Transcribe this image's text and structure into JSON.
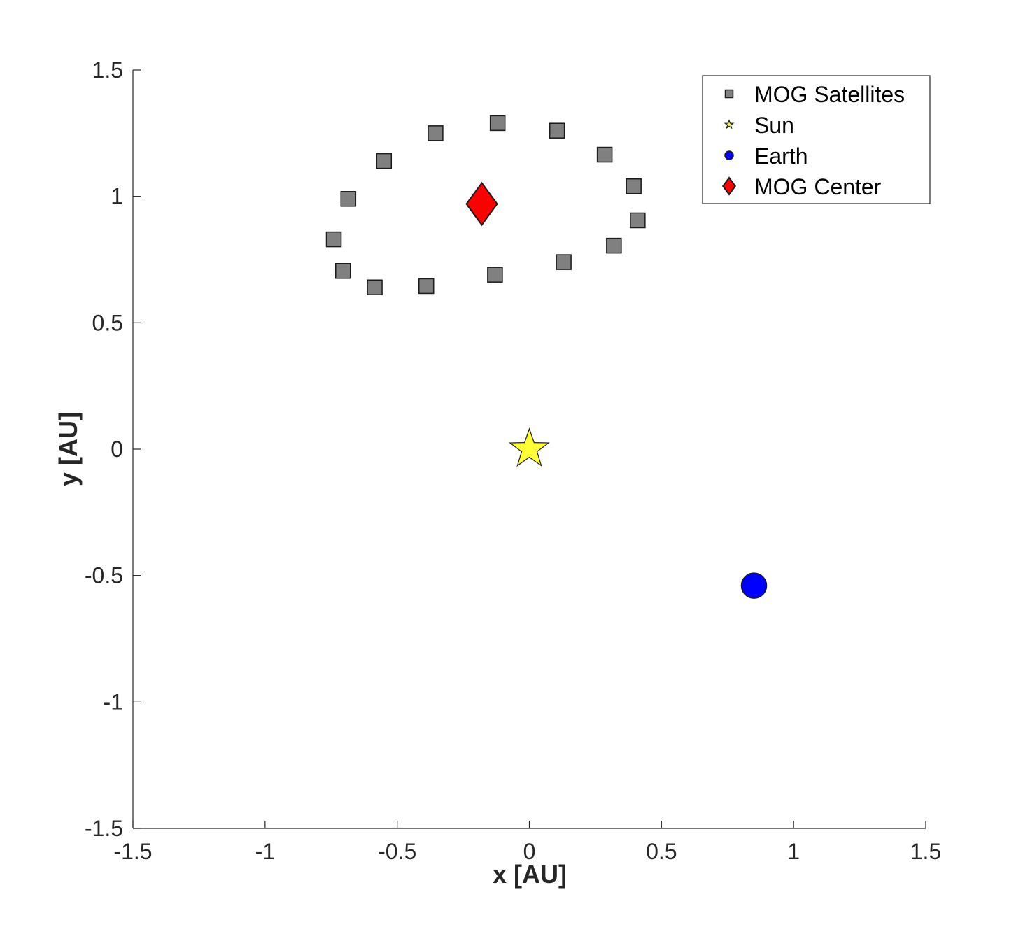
{
  "chart_data": {
    "type": "scatter",
    "title": "",
    "xlabel": "x [AU]",
    "ylabel": "y [AU]",
    "xlim": [
      -1.5,
      1.5
    ],
    "ylim": [
      -1.5,
      1.5
    ],
    "xticks": [
      -1.5,
      -1,
      -0.5,
      0,
      0.5,
      1,
      1.5
    ],
    "yticks": [
      -1.5,
      -1,
      -0.5,
      0,
      0.5,
      1,
      1.5
    ],
    "xtick_labels": [
      "-1.5",
      "-1",
      "-0.5",
      "0",
      "0.5",
      "1",
      "1.5"
    ],
    "ytick_labels": [
      "-1.5",
      "-1",
      "-0.5",
      "0",
      "0.5",
      "1",
      "1.5"
    ],
    "grid": false,
    "legend_position": "top-right",
    "series": [
      {
        "name": "MOG Satellites",
        "marker": "square",
        "color": "#808080",
        "points": [
          {
            "x": -0.12,
            "y": 1.29
          },
          {
            "x": 0.105,
            "y": 1.26
          },
          {
            "x": 0.285,
            "y": 1.165
          },
          {
            "x": 0.395,
            "y": 1.04
          },
          {
            "x": 0.41,
            "y": 0.905
          },
          {
            "x": 0.32,
            "y": 0.805
          },
          {
            "x": 0.13,
            "y": 0.74
          },
          {
            "x": -0.13,
            "y": 0.69
          },
          {
            "x": -0.39,
            "y": 0.645
          },
          {
            "x": -0.585,
            "y": 0.64
          },
          {
            "x": -0.705,
            "y": 0.705
          },
          {
            "x": -0.74,
            "y": 0.83
          },
          {
            "x": -0.685,
            "y": 0.99
          },
          {
            "x": -0.55,
            "y": 1.14
          },
          {
            "x": -0.355,
            "y": 1.25
          }
        ]
      },
      {
        "name": "Sun",
        "marker": "star",
        "color": "#ffff33",
        "points": [
          {
            "x": 0,
            "y": 0
          }
        ]
      },
      {
        "name": "Earth",
        "marker": "circle",
        "color": "#0000ff",
        "points": [
          {
            "x": 0.85,
            "y": -0.54
          }
        ]
      },
      {
        "name": "MOG Center",
        "marker": "diamond",
        "color": "#ff0000",
        "points": [
          {
            "x": -0.18,
            "y": 0.97
          }
        ]
      }
    ]
  }
}
